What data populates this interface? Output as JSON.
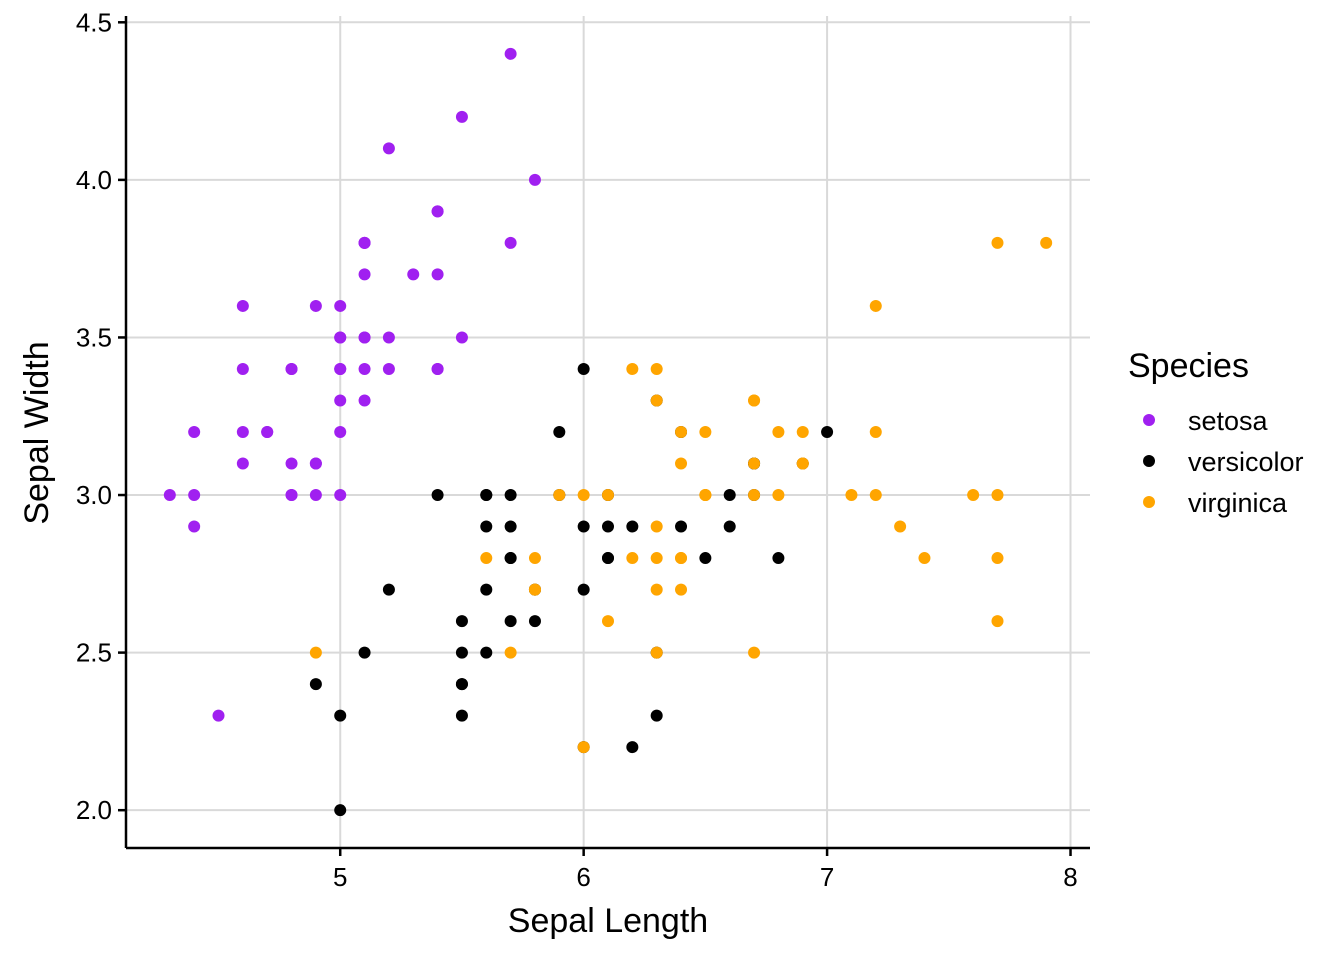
{
  "chart_data": {
    "type": "scatter",
    "title": "",
    "xlabel": "Sepal Length",
    "ylabel": "Sepal Width",
    "xlim": [
      4.12,
      8.08
    ],
    "ylim": [
      1.88,
      4.52
    ],
    "xticks": [
      5,
      6,
      7,
      8
    ],
    "xtick_labels": [
      "5",
      "6",
      "7",
      "8"
    ],
    "yticks": [
      2.0,
      2.5,
      3.0,
      3.5,
      4.0,
      4.5
    ],
    "ytick_labels": [
      "2.0",
      "2.5",
      "3.0",
      "3.5",
      "4.0",
      "4.5"
    ],
    "grid": true,
    "legend": {
      "title": "Species",
      "position": "right"
    },
    "series": [
      {
        "name": "setosa",
        "color": "#a020f0",
        "points": [
          [
            5.1,
            3.5
          ],
          [
            4.9,
            3.0
          ],
          [
            4.7,
            3.2
          ],
          [
            4.6,
            3.1
          ],
          [
            5.0,
            3.6
          ],
          [
            5.4,
            3.9
          ],
          [
            4.6,
            3.4
          ],
          [
            5.0,
            3.4
          ],
          [
            4.4,
            2.9
          ],
          [
            4.9,
            3.1
          ],
          [
            5.4,
            3.7
          ],
          [
            4.8,
            3.4
          ],
          [
            4.8,
            3.0
          ],
          [
            4.3,
            3.0
          ],
          [
            5.8,
            4.0
          ],
          [
            5.7,
            4.4
          ],
          [
            5.4,
            3.9
          ],
          [
            5.1,
            3.5
          ],
          [
            5.7,
            3.8
          ],
          [
            5.1,
            3.8
          ],
          [
            5.4,
            3.4
          ],
          [
            5.1,
            3.7
          ],
          [
            4.6,
            3.6
          ],
          [
            5.1,
            3.3
          ],
          [
            4.8,
            3.4
          ],
          [
            5.0,
            3.0
          ],
          [
            5.0,
            3.4
          ],
          [
            5.2,
            3.5
          ],
          [
            5.2,
            3.4
          ],
          [
            4.7,
            3.2
          ],
          [
            4.8,
            3.1
          ],
          [
            5.4,
            3.4
          ],
          [
            5.2,
            4.1
          ],
          [
            5.5,
            4.2
          ],
          [
            4.9,
            3.1
          ],
          [
            5.0,
            3.2
          ],
          [
            5.5,
            3.5
          ],
          [
            4.9,
            3.6
          ],
          [
            4.4,
            3.0
          ],
          [
            5.1,
            3.4
          ],
          [
            5.0,
            3.5
          ],
          [
            4.5,
            2.3
          ],
          [
            4.4,
            3.2
          ],
          [
            5.0,
            3.5
          ],
          [
            5.1,
            3.8
          ],
          [
            4.8,
            3.0
          ],
          [
            5.1,
            3.8
          ],
          [
            4.6,
            3.2
          ],
          [
            5.3,
            3.7
          ],
          [
            5.0,
            3.3
          ]
        ]
      },
      {
        "name": "versicolor",
        "color": "#000000",
        "points": [
          [
            7.0,
            3.2
          ],
          [
            6.4,
            3.2
          ],
          [
            6.9,
            3.1
          ],
          [
            5.5,
            2.3
          ],
          [
            6.5,
            2.8
          ],
          [
            5.7,
            2.8
          ],
          [
            6.3,
            3.3
          ],
          [
            4.9,
            2.4
          ],
          [
            6.6,
            2.9
          ],
          [
            5.2,
            2.7
          ],
          [
            5.0,
            2.0
          ],
          [
            5.9,
            3.0
          ],
          [
            6.0,
            2.2
          ],
          [
            6.1,
            2.9
          ],
          [
            5.6,
            2.9
          ],
          [
            6.7,
            3.1
          ],
          [
            5.6,
            3.0
          ],
          [
            5.8,
            2.7
          ],
          [
            6.2,
            2.2
          ],
          [
            5.6,
            2.5
          ],
          [
            5.9,
            3.2
          ],
          [
            6.1,
            2.8
          ],
          [
            6.3,
            2.5
          ],
          [
            6.1,
            2.8
          ],
          [
            6.4,
            2.9
          ],
          [
            6.6,
            3.0
          ],
          [
            6.8,
            2.8
          ],
          [
            6.7,
            3.0
          ],
          [
            6.0,
            2.9
          ],
          [
            5.7,
            2.6
          ],
          [
            5.5,
            2.4
          ],
          [
            5.5,
            2.4
          ],
          [
            5.8,
            2.7
          ],
          [
            6.0,
            2.7
          ],
          [
            5.4,
            3.0
          ],
          [
            6.0,
            3.4
          ],
          [
            6.7,
            3.1
          ],
          [
            6.3,
            2.3
          ],
          [
            5.6,
            3.0
          ],
          [
            5.5,
            2.5
          ],
          [
            5.5,
            2.6
          ],
          [
            6.1,
            3.0
          ],
          [
            5.8,
            2.6
          ],
          [
            5.0,
            2.3
          ],
          [
            5.6,
            2.7
          ],
          [
            5.7,
            3.0
          ],
          [
            5.7,
            2.9
          ],
          [
            6.2,
            2.9
          ],
          [
            5.1,
            2.5
          ],
          [
            5.7,
            2.8
          ]
        ]
      },
      {
        "name": "virginica",
        "color": "#ffa500",
        "points": [
          [
            6.3,
            3.3
          ],
          [
            5.8,
            2.7
          ],
          [
            7.1,
            3.0
          ],
          [
            6.3,
            2.9
          ],
          [
            6.5,
            3.0
          ],
          [
            7.6,
            3.0
          ],
          [
            4.9,
            2.5
          ],
          [
            7.3,
            2.9
          ],
          [
            6.7,
            2.5
          ],
          [
            7.2,
            3.6
          ],
          [
            6.5,
            3.2
          ],
          [
            6.4,
            2.7
          ],
          [
            6.8,
            3.0
          ],
          [
            5.7,
            2.5
          ],
          [
            5.8,
            2.8
          ],
          [
            6.4,
            3.2
          ],
          [
            6.5,
            3.0
          ],
          [
            7.7,
            3.8
          ],
          [
            7.7,
            2.6
          ],
          [
            6.0,
            2.2
          ],
          [
            6.9,
            3.2
          ],
          [
            5.6,
            2.8
          ],
          [
            7.7,
            2.8
          ],
          [
            6.3,
            2.7
          ],
          [
            6.7,
            3.3
          ],
          [
            7.2,
            3.2
          ],
          [
            6.2,
            2.8
          ],
          [
            6.1,
            3.0
          ],
          [
            6.4,
            2.8
          ],
          [
            7.2,
            3.0
          ],
          [
            7.4,
            2.8
          ],
          [
            7.9,
            3.8
          ],
          [
            6.4,
            2.8
          ],
          [
            6.3,
            2.8
          ],
          [
            6.1,
            2.6
          ],
          [
            7.7,
            3.0
          ],
          [
            6.3,
            3.4
          ],
          [
            6.4,
            3.1
          ],
          [
            6.0,
            3.0
          ],
          [
            6.9,
            3.1
          ],
          [
            6.7,
            3.1
          ],
          [
            6.9,
            3.1
          ],
          [
            5.8,
            2.7
          ],
          [
            6.8,
            3.2
          ],
          [
            6.7,
            3.3
          ],
          [
            6.7,
            3.0
          ],
          [
            6.3,
            2.5
          ],
          [
            6.5,
            3.0
          ],
          [
            6.2,
            3.4
          ],
          [
            5.9,
            3.0
          ]
        ]
      }
    ]
  }
}
